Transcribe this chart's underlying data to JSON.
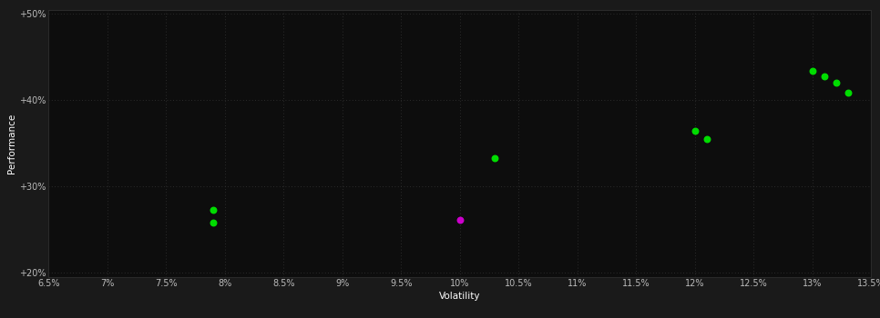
{
  "background_color": "#1a1a1a",
  "plot_bg_color": "#0d0d0d",
  "xlabel": "Volatility",
  "ylabel": "Performance",
  "xlim": [
    0.065,
    0.135
  ],
  "ylim": [
    0.195,
    0.505
  ],
  "xticks": [
    0.065,
    0.07,
    0.075,
    0.08,
    0.085,
    0.09,
    0.095,
    0.1,
    0.105,
    0.11,
    0.115,
    0.12,
    0.125,
    0.13,
    0.135
  ],
  "yticks": [
    0.2,
    0.3,
    0.4,
    0.5
  ],
  "ytick_labels": [
    "+20%",
    "+30%",
    "+40%",
    "+50%"
  ],
  "xtick_labels": [
    "6.5%",
    "7%",
    "7.5%",
    "8%",
    "8.5%",
    "9%",
    "9.5%",
    "10%",
    "10.5%",
    "11%",
    "11.5%",
    "12%",
    "12.5%",
    "13%",
    "13.5%"
  ],
  "points_green": [
    [
      0.079,
      0.272
    ],
    [
      0.079,
      0.258
    ],
    [
      0.103,
      0.333
    ],
    [
      0.12,
      0.364
    ],
    [
      0.121,
      0.355
    ],
    [
      0.13,
      0.434
    ],
    [
      0.131,
      0.427
    ],
    [
      0.132,
      0.42
    ],
    [
      0.133,
      0.408
    ]
  ],
  "points_magenta": [
    [
      0.1,
      0.261
    ]
  ],
  "point_color_green": "#00dd00",
  "point_color_magenta": "#cc00cc",
  "point_size": 22,
  "text_color": "#ffffff",
  "tick_color": "#bbbbbb",
  "axis_label_fontsize": 7.5,
  "tick_fontsize": 7.0,
  "grid_color": "#3a3a3a",
  "grid_alpha": 0.9
}
